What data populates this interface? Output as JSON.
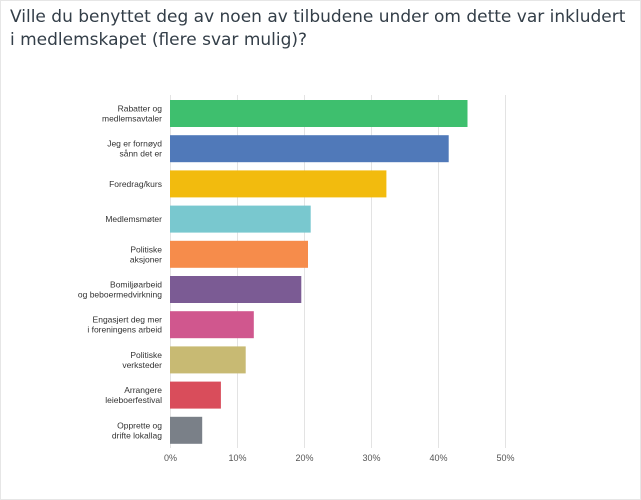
{
  "question": {
    "title": "Ville du benyttet deg av noen av tilbudene under om dette var inkludert i medlemskapet (flere svar mulig)?"
  },
  "chart_data": {
    "type": "bar",
    "orientation": "horizontal",
    "categories": [
      [
        "Rabatter og",
        "medlemsavtaler"
      ],
      [
        "Jeg er fornøyd",
        "sånn det er"
      ],
      [
        "Foredrag/kurs"
      ],
      [
        "Medlemsmøter"
      ],
      [
        "Politiske",
        "aksjoner"
      ],
      [
        "Bomiljøarbeid",
        "og  beboermedvirkning"
      ],
      [
        "Engasjert deg mer",
        "i foreningens  arbeid"
      ],
      [
        "Politiske",
        "verksteder"
      ],
      [
        "Arrangere",
        "leieboerfestival"
      ],
      [
        "Opprette og",
        "drifte lokallag"
      ]
    ],
    "values": [
      44.4,
      41.6,
      32.3,
      21.0,
      20.6,
      19.6,
      12.5,
      11.3,
      7.6,
      4.8
    ],
    "colors": [
      "#3ebf6e",
      "#5079b9",
      "#f2bb0e",
      "#79c8cf",
      "#f68c4b",
      "#7b5b94",
      "#d0578e",
      "#c8ba73",
      "#d94d5b",
      "#7a8088"
    ],
    "xlim": [
      0,
      50
    ],
    "xticks": [
      0,
      10,
      20,
      30,
      40,
      50
    ],
    "xtick_labels": [
      "0%",
      "10%",
      "20%",
      "30%",
      "40%",
      "50%"
    ],
    "grid": true,
    "legend": "none"
  }
}
